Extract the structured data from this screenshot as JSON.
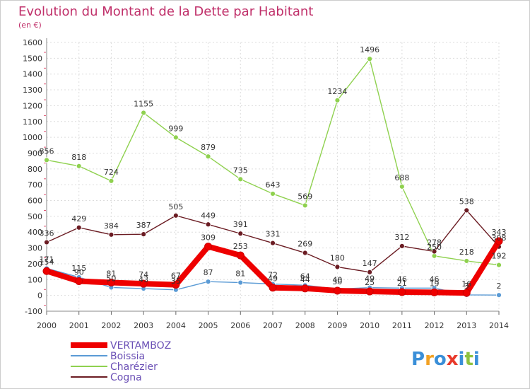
{
  "chart_data": {
    "type": "line",
    "title": "Evolution du Montant de la Dette par Habitant",
    "subtitle": "(en €)",
    "xlabel": "",
    "ylabel": "",
    "x": [
      2000,
      2001,
      2002,
      2003,
      2004,
      2005,
      2006,
      2007,
      2008,
      2009,
      2010,
      2011,
      2012,
      2013,
      2014
    ],
    "ylim": [
      -100,
      1600
    ],
    "yticks": [
      -100,
      0,
      100,
      200,
      300,
      400,
      500,
      600,
      700,
      800,
      900,
      1000,
      1100,
      1200,
      1300,
      1400,
      1500,
      1600
    ],
    "grid": true,
    "legend_position": "bottom-left",
    "series": [
      {
        "name": "VERTAMBOZ",
        "color": "#ee0000",
        "values": [
          154,
          90,
          81,
          74,
          67,
          309,
          253,
          49,
          44,
          30,
          25,
          21,
          19,
          16,
          343
        ]
      },
      {
        "name": "Boissia",
        "color": "#5b9bd5",
        "values": [
          171,
          115,
          50,
          43,
          35,
          87,
          81,
          72,
          64,
          40,
          49,
          46,
          46,
          3,
          2
        ]
      },
      {
        "name": "Charézier",
        "color": "#8fd14f",
        "values": [
          856,
          818,
          724,
          1155,
          999,
          879,
          735,
          643,
          569,
          1234,
          1496,
          688,
          250,
          218,
          192
        ]
      },
      {
        "name": "Cogna",
        "color": "#6b1c23",
        "values": [
          336,
          429,
          384,
          387,
          505,
          449,
          391,
          331,
          269,
          180,
          147,
          312,
          278,
          538,
          308
        ]
      }
    ]
  },
  "branding": {
    "logo_text": "Proxiti",
    "letters": [
      "P",
      "r",
      "o",
      "x",
      "i",
      "t",
      "i"
    ],
    "letter_colors": [
      "#3a8fd8",
      "#f2a122",
      "#3a8fd8",
      "#e8392b",
      "#3a8fd8",
      "#8ec23f",
      "#3a8fd8"
    ]
  }
}
